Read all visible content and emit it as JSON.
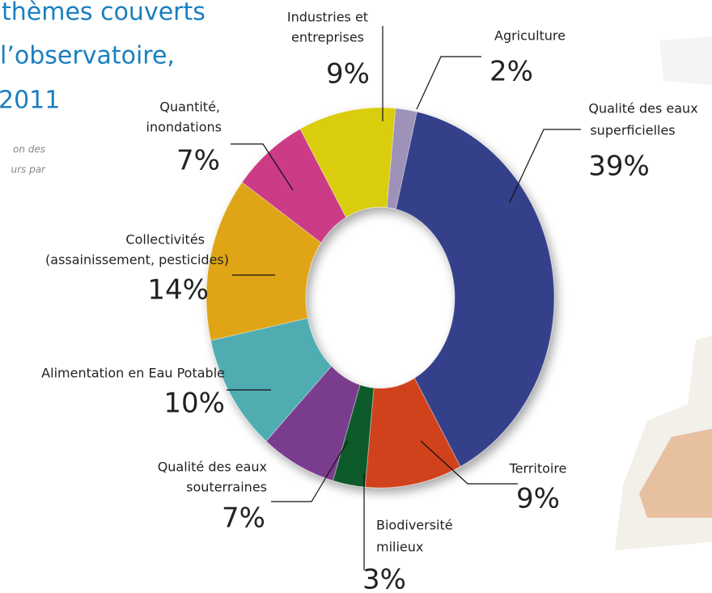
{
  "chart_data": {
    "type": "donut",
    "title": [
      "thèmes couverts",
      "l’observatoire,",
      "2011"
    ],
    "subtitle": [
      "on des",
      "urs par"
    ],
    "categories": [
      [
        "Agriculture"
      ],
      [
        "Qualité des eaux",
        "superficielles"
      ],
      [
        "Territoire"
      ],
      [
        "Biodiversité",
        "milieux"
      ],
      [
        "Qualité des eaux",
        "souterraines"
      ],
      [
        "Alimentation en Eau Potable"
      ],
      [
        "Collectivités",
        "(assainissement, pesticides)"
      ],
      [
        "Quantité,",
        "inondations"
      ],
      [
        "Industries et",
        "entreprises"
      ]
    ],
    "values": [
      2,
      39,
      9,
      3,
      7,
      10,
      14,
      7,
      9
    ],
    "value_labels": [
      "2%",
      "39%",
      "9%",
      "3%",
      "7%",
      "10%",
      "14%",
      "7%",
      "9%"
    ],
    "colors": [
      "#9e92b8",
      "#35408a",
      "#d0421a",
      "#0f5a2a",
      "#7a3c8e",
      "#4fadb2",
      "#e0a519",
      "#cc3a86",
      "#d9cd0a"
    ]
  }
}
